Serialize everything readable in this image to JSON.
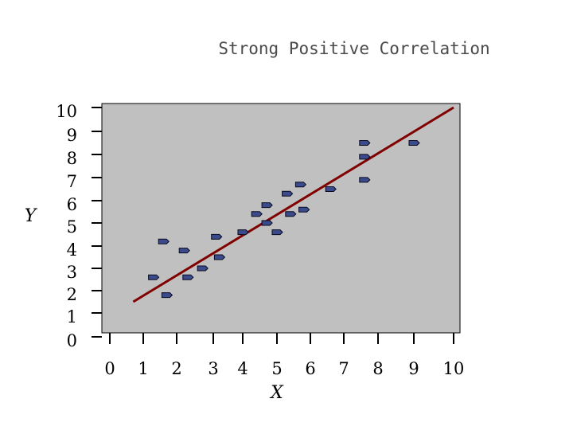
{
  "chart_data": {
    "type": "scatter",
    "title": "Strong Positive Correlation",
    "xlabel": "X",
    "ylabel": "Y",
    "xlim": [
      0,
      10
    ],
    "ylim": [
      0,
      10
    ],
    "x_ticks": [
      "0",
      "1",
      "2",
      "3",
      "4",
      "5",
      "6",
      "7",
      "8",
      "9",
      "10"
    ],
    "y_ticks": [
      "0",
      "1",
      "2",
      "3",
      "4",
      "5",
      "6",
      "7",
      "8",
      "9",
      "10"
    ],
    "grid": false,
    "background": "#c0c0c0",
    "colors": {
      "points": "#3a4a8a",
      "trendline": "#800000"
    },
    "points": [
      {
        "x": 1.3,
        "y": 2.6
      },
      {
        "x": 1.6,
        "y": 4.2
      },
      {
        "x": 1.7,
        "y": 1.8
      },
      {
        "x": 2.2,
        "y": 3.8
      },
      {
        "x": 2.3,
        "y": 2.6
      },
      {
        "x": 2.7,
        "y": 3.0
      },
      {
        "x": 3.1,
        "y": 4.4
      },
      {
        "x": 3.2,
        "y": 3.5
      },
      {
        "x": 4.0,
        "y": 4.6
      },
      {
        "x": 4.4,
        "y": 5.4
      },
      {
        "x": 4.7,
        "y": 5.0
      },
      {
        "x": 4.7,
        "y": 5.8
      },
      {
        "x": 5.0,
        "y": 4.6
      },
      {
        "x": 5.3,
        "y": 6.3
      },
      {
        "x": 5.4,
        "y": 5.4
      },
      {
        "x": 5.7,
        "y": 6.7
      },
      {
        "x": 5.8,
        "y": 5.6
      },
      {
        "x": 6.6,
        "y": 6.5
      },
      {
        "x": 7.6,
        "y": 8.5
      },
      {
        "x": 7.6,
        "y": 7.9
      },
      {
        "x": 7.6,
        "y": 6.9
      },
      {
        "x": 9.0,
        "y": 8.5
      }
    ],
    "trendline": {
      "x": [
        0.7,
        10.0
      ],
      "y": [
        1.5,
        10.0
      ]
    }
  }
}
